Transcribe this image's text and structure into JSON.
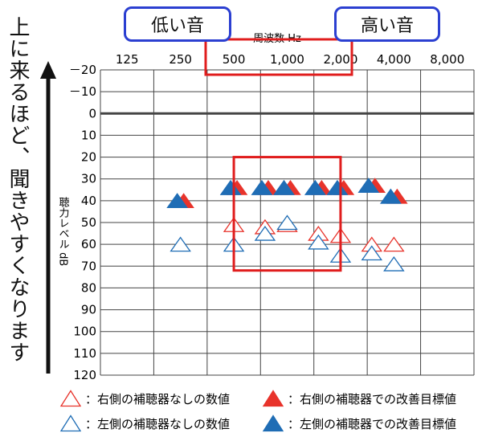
{
  "side_caption": "上に来るほど、聞きやすくなります",
  "low_pill": "低い音",
  "high_pill": "高い音",
  "colors": {
    "red": "#e8332b",
    "blue": "#1f6db5",
    "highlight": "#e01d1d",
    "pill_border": "#2b3fd1",
    "grid": "#444444"
  },
  "chart_data": {
    "type": "scatter",
    "title": "周波数 Hz",
    "xlabel": "周波数 Hz",
    "ylabel": "聴力レベル dB",
    "x_categories": [
      "125",
      "250",
      "500",
      "1,000",
      "2,000",
      "4,000",
      "8,000"
    ],
    "y_ticks": [
      -20,
      -10,
      0,
      10,
      20,
      30,
      40,
      50,
      60,
      70,
      80,
      90,
      100,
      110,
      120
    ],
    "y_tick_labels": [
      "－20",
      "－10",
      "0",
      "10",
      "20",
      "30",
      "40",
      "50",
      "60",
      "70",
      "80",
      "90",
      "100",
      "110",
      "120"
    ],
    "ylim": [
      -20,
      120
    ],
    "y_inverted": true,
    "grid": true,
    "highlight_box": {
      "x_from": 500,
      "x_to": 2000,
      "y_from": 20,
      "y_to": 72
    },
    "series": [
      {
        "name": "右側の補聴器なしの数値",
        "marker": "open-triangle",
        "color": "#e8332b",
        "points": [
          [
            500,
            51
          ],
          [
            750,
            52
          ],
          [
            1000,
            51
          ],
          [
            1500,
            55
          ],
          [
            2000,
            56
          ],
          [
            3000,
            60
          ],
          [
            4000,
            60
          ]
        ]
      },
      {
        "name": "左側の補聴器なしの数値",
        "marker": "open-triangle",
        "color": "#1f6db5",
        "points": [
          [
            250,
            60
          ],
          [
            500,
            60
          ],
          [
            750,
            55
          ],
          [
            1000,
            50
          ],
          [
            1500,
            59
          ],
          [
            2000,
            65
          ],
          [
            3000,
            64
          ],
          [
            4000,
            69
          ]
        ]
      },
      {
        "name": "右側の補聴器での改善目標値",
        "marker": "filled-triangle",
        "color": "#e8332b",
        "points": [
          [
            250,
            40
          ],
          [
            500,
            34
          ],
          [
            750,
            34
          ],
          [
            1000,
            34
          ],
          [
            1500,
            34
          ],
          [
            2000,
            34
          ],
          [
            3000,
            33
          ],
          [
            4000,
            38
          ]
        ]
      },
      {
        "name": "左側の補聴器での改善目標値",
        "marker": "filled-triangle",
        "color": "#1f6db5",
        "points": [
          [
            250,
            40
          ],
          [
            500,
            34
          ],
          [
            750,
            34
          ],
          [
            1000,
            34
          ],
          [
            1500,
            34
          ],
          [
            2000,
            34
          ],
          [
            3000,
            33
          ],
          [
            4000,
            38
          ]
        ]
      }
    ]
  }
}
